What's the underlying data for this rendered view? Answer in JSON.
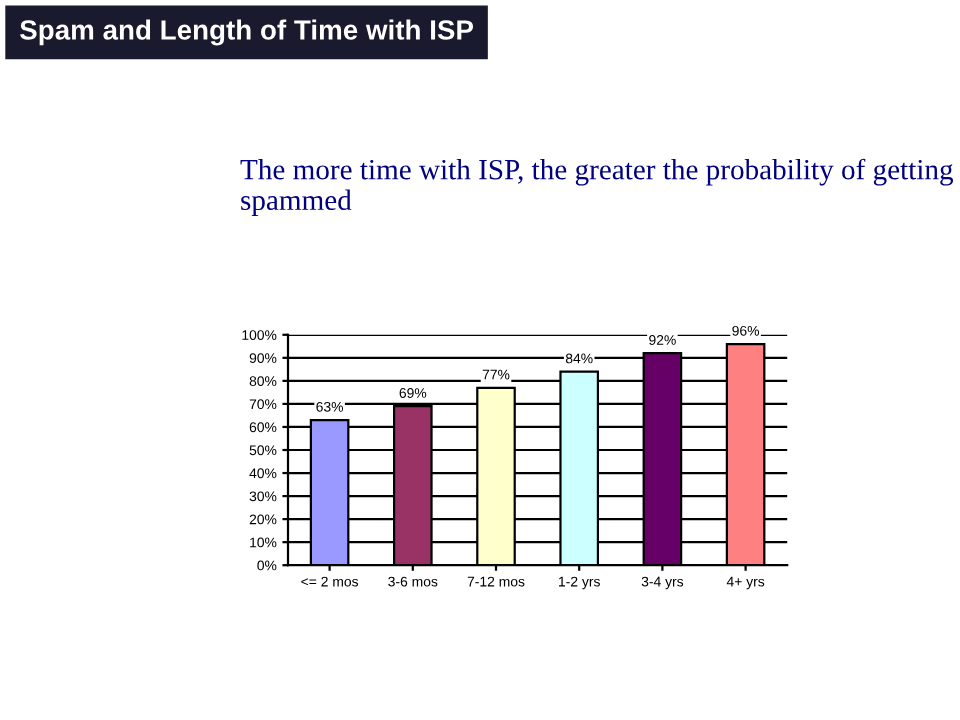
{
  "chart_data": {
    "type": "bar",
    "title": "Spam and Length of Time with ISP",
    "subtitle": "The more time with ISP, the greater the probability of getting spammed",
    "categories": [
      "<= 2 mos",
      "3-6 mos",
      "7-12 mos",
      "1-2 yrs",
      "3-4 yrs",
      "4+ yrs"
    ],
    "values": [
      63,
      69,
      77,
      84,
      92,
      96
    ],
    "colors": [
      "#9999ff",
      "#993366",
      "#ffffcc",
      "#ccffff",
      "#660066",
      "#ff8080"
    ],
    "value_labels": [
      "63%",
      "69%",
      "77%",
      "84%",
      "92%",
      "96%"
    ],
    "ylim": [
      0,
      100
    ],
    "yticks": [
      {
        "value": 0,
        "label": "0%"
      },
      {
        "value": 10,
        "label": "10%"
      },
      {
        "value": 20,
        "label": "20%"
      },
      {
        "value": 30,
        "label": "30%"
      },
      {
        "value": 40,
        "label": "40%"
      },
      {
        "value": 50,
        "label": "50%"
      },
      {
        "value": 60,
        "label": "60%"
      },
      {
        "value": 70,
        "label": "70%"
      },
      {
        "value": 80,
        "label": "80%"
      },
      {
        "value": 90,
        "label": "90%"
      },
      {
        "value": 100,
        "label": "100%"
      }
    ],
    "grid": "y"
  }
}
